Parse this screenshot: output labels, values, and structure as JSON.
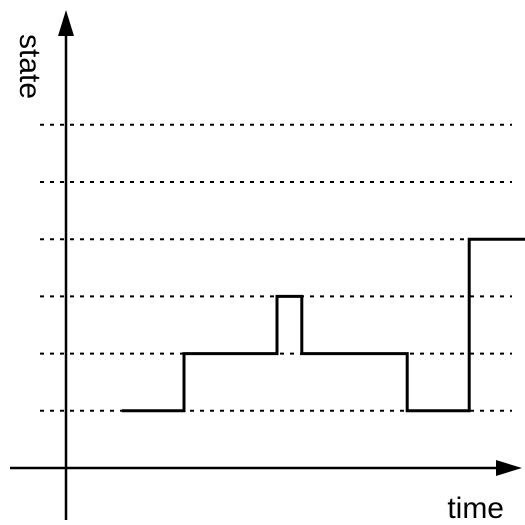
{
  "chart_data": {
    "type": "line",
    "xlabel": "time",
    "ylabel": "state",
    "step_path": {
      "x": [
        0,
        1,
        1,
        2.5,
        2.5,
        2.9,
        2.9,
        4.6,
        4.6,
        5.6,
        5.6,
        6.75
      ],
      "y": [
        1,
        1,
        2,
        2,
        3,
        3,
        2,
        2,
        1,
        1,
        4,
        4
      ]
    },
    "levels": [
      1,
      2,
      3,
      4,
      5,
      6
    ],
    "grid": true,
    "colors": {
      "line": "#000000",
      "grid": "#000000",
      "axis": "#000000"
    }
  }
}
